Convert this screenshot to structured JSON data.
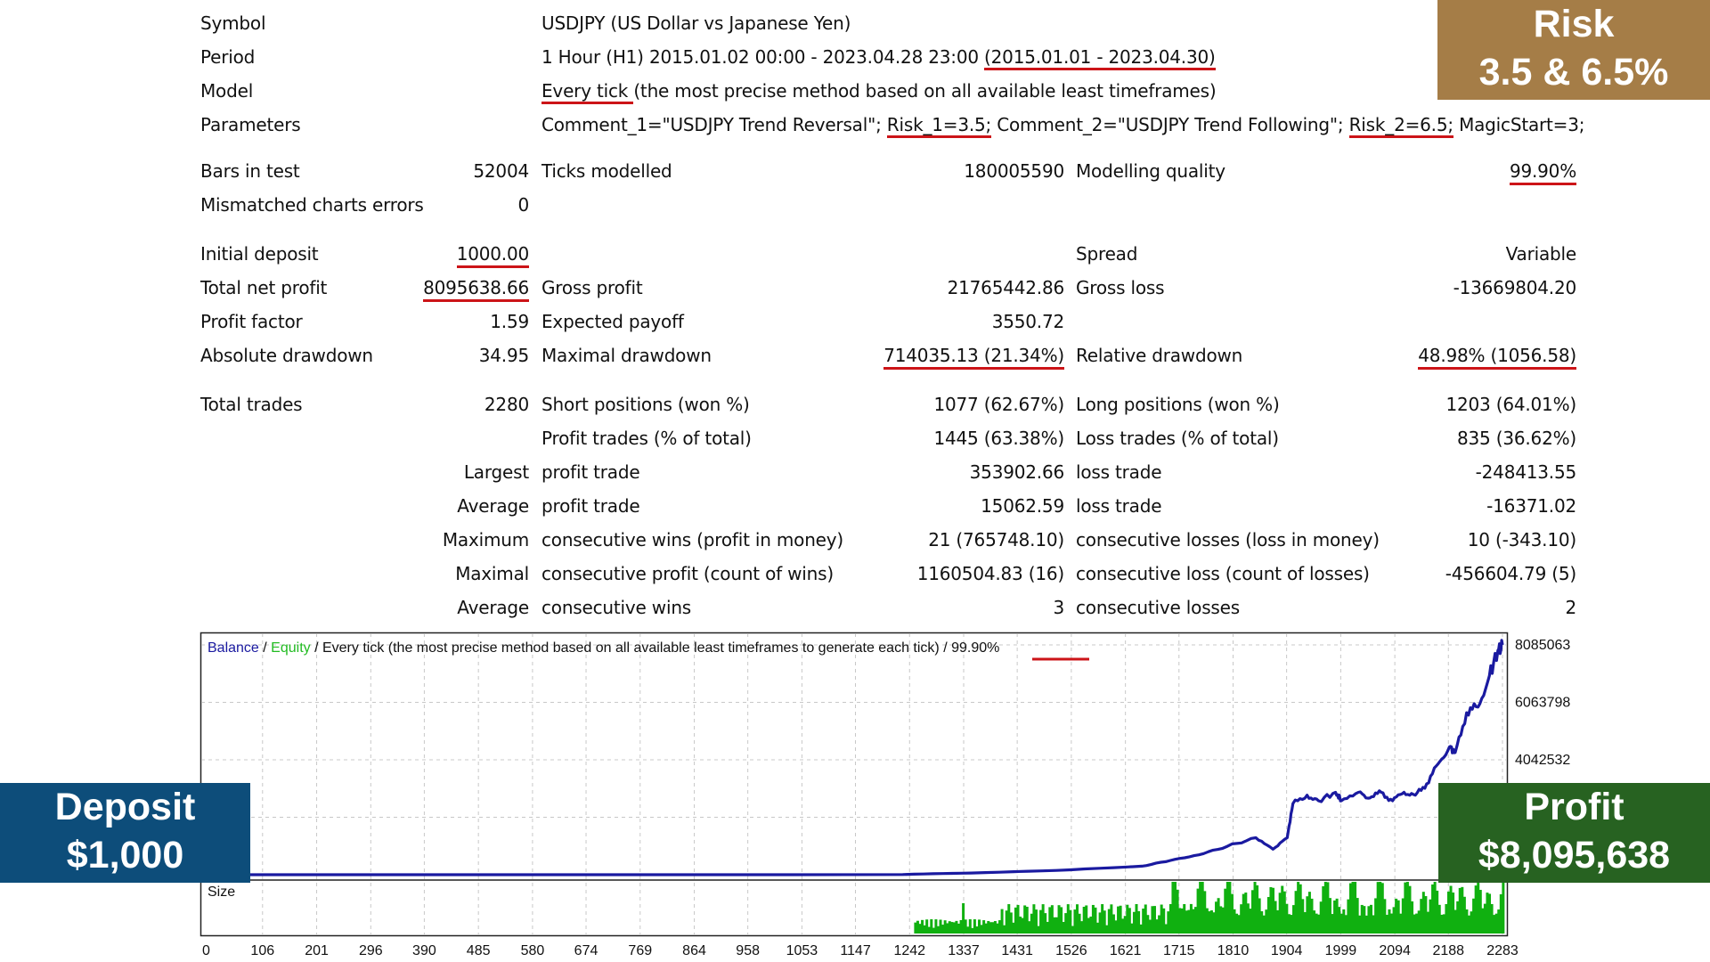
{
  "header": {
    "symbol_label": "Symbol",
    "symbol_value": "USDJPY (US Dollar vs Japanese Yen)",
    "period_label": "Period",
    "period_value": "1 Hour (H1) 2015.01.02 00:00 - 2023.04.28 23:00 ",
    "period_range": "(2015.01.01 - 2023.04.30)",
    "model_label": "Model",
    "model_emph": "Every tick ",
    "model_rest": "(the most precise method based on all available least timeframes)",
    "params_label": "Parameters",
    "params": [
      {
        "text": "Comment_1=\"USDJPY Trend Reversal\"; ",
        "underline": false
      },
      {
        "text": "Risk_1=3.5;",
        "underline": true
      },
      {
        "text": " Comment_2=\"USDJPY Trend Following\"; ",
        "underline": false
      },
      {
        "text": "Risk_2=6.5;",
        "underline": true
      },
      {
        "text": " MagicStart=3;",
        "underline": false
      }
    ]
  },
  "stats": {
    "bars_label": "Bars in test",
    "bars_value": "52004",
    "ticks_label": "Ticks modelled",
    "ticks_value": "180005590",
    "quality_label": "Modelling quality",
    "quality_value": "99.90%",
    "mismatch_label": "Mismatched charts errors",
    "mismatch_value": "0",
    "initial_deposit_label": "Initial deposit",
    "initial_deposit_value": "1000.00",
    "spread_label": "Spread",
    "spread_value": "Variable",
    "net_profit_label": "Total net profit",
    "net_profit_value": "8095638.66",
    "gross_profit_label": "Gross profit",
    "gross_profit_value": "21765442.86",
    "gross_loss_label": "Gross loss",
    "gross_loss_value": "-13669804.20",
    "profit_factor_label": "Profit factor",
    "profit_factor_value": "1.59",
    "expected_payoff_label": "Expected payoff",
    "expected_payoff_value": "3550.72",
    "abs_dd_label": "Absolute drawdown",
    "abs_dd_value": "34.95",
    "max_dd_label": "Maximal drawdown",
    "max_dd_value": "714035.13 (21.34%)",
    "rel_dd_label": "Relative drawdown",
    "rel_dd_value": "48.98% (1056.58)",
    "total_trades_label": "Total trades",
    "total_trades_value": "2280",
    "short_label": "Short positions (won %)",
    "short_value": "1077 (62.67%)",
    "long_label": "Long positions (won %)",
    "long_value": "1203 (64.01%)",
    "profit_trades_label": "Profit trades (% of total)",
    "profit_trades_value": "1445 (63.38%)",
    "loss_trades_label": "Loss trades (% of total)",
    "loss_trades_value": "835 (36.62%)",
    "largest_prefix": "Largest",
    "largest_profit_label": "profit trade",
    "largest_profit_value": "353902.66",
    "largest_loss_label": "loss trade",
    "largest_loss_value": "-248413.55",
    "average_prefix": "Average",
    "average_profit_label": "profit trade",
    "average_profit_value": "15062.59",
    "average_loss_label": "loss trade",
    "average_loss_value": "-16371.02",
    "maximum_prefix": "Maximum",
    "max_cons_wins_label": "consecutive wins (profit in money)",
    "max_cons_wins_value": "21 (765748.10)",
    "max_cons_losses_label": "consecutive losses (loss in money)",
    "max_cons_losses_value": "10 (-343.10)",
    "maximal_prefix": "Maximal",
    "maximal_cons_profit_label": "consecutive profit (count of wins)",
    "maximal_cons_profit_value": "1160504.83 (16)",
    "maximal_cons_loss_label": "consecutive loss (count of losses)",
    "maximal_cons_loss_value": "-456604.79 (5)",
    "avg_cons_prefix": "Average",
    "avg_cons_wins_label": "consecutive wins",
    "avg_cons_wins_value": "3",
    "avg_cons_losses_label": "consecutive losses",
    "avg_cons_losses_value": "2"
  },
  "badges": {
    "risk_title": "Risk",
    "risk_value": "3.5 & 6.5%",
    "deposit_title": "Deposit",
    "deposit_value": "$1,000",
    "profit_title": "Profit",
    "profit_value": "$8,095,638"
  },
  "colors": {
    "balance": "#1a1aa0",
    "equity": "#22bb22",
    "volume": "#10b010",
    "underline": "#cc1418",
    "risk_badge": "#a57d47",
    "deposit_badge": "#0d4d7a",
    "profit_badge": "#276221"
  },
  "chart_data": {
    "type": "line",
    "legend_balance": "Balance",
    "legend_equity": "Equity",
    "legend_desc": " / Every tick (the most precise method based on all available least timeframes to generate each tick) / ",
    "legend_quality": "99.90%",
    "size_label": "Size",
    "x_ticks": [
      "0",
      "106",
      "201",
      "296",
      "390",
      "485",
      "580",
      "674",
      "769",
      "864",
      "958",
      "1053",
      "1147",
      "1242",
      "1337",
      "1431",
      "1526",
      "1621",
      "1715",
      "1810",
      "1904",
      "1999",
      "2094",
      "2188",
      "2283"
    ],
    "y_ticks": [
      8085063,
      6063798,
      4042532
    ],
    "xlim": [
      0,
      2283
    ],
    "ylim": [
      0,
      8400000
    ],
    "series": [
      {
        "name": "Balance",
        "x": [
          0,
          500,
          1000,
          1230,
          1250,
          1350,
          1500,
          1650,
          1700,
          1750,
          1800,
          1850,
          1880,
          1905,
          1915,
          1940,
          1960,
          1990,
          2000,
          2030,
          2050,
          2070,
          2090,
          2110,
          2130,
          2150,
          2170,
          2190,
          2200,
          2220,
          2240,
          2260,
          2275,
          2283
        ],
        "y": [
          1000,
          1000,
          1000,
          5000,
          20000,
          60000,
          150000,
          300000,
          500000,
          700000,
          1000000,
          1300000,
          900000,
          1300000,
          2500000,
          2800000,
          2600000,
          2900000,
          2600000,
          2900000,
          2700000,
          2900000,
          2600000,
          2900000,
          2800000,
          3200000,
          3900000,
          4500000,
          4300000,
          5700000,
          5900000,
          7000000,
          7900000,
          8085063
        ]
      }
    ]
  }
}
